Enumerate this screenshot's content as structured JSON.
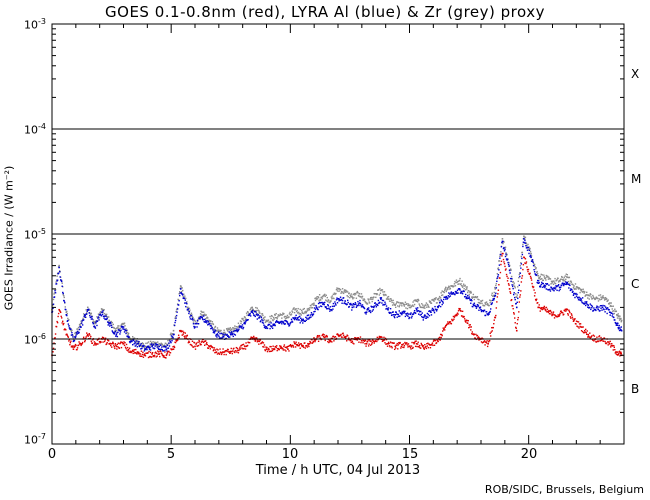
{
  "chart_data": {
    "type": "scatter",
    "title": "GOES 0.1-0.8nm (red), LYRA Al (blue) & Zr (grey) proxy",
    "xlabel": "Time / h UTC, 04 Jul 2013",
    "ylabel": "GOES Irradiance / (W m⁻²)",
    "xlim": [
      0,
      24
    ],
    "ylim": [
      1e-07,
      0.001
    ],
    "yscale": "log",
    "x_ticks": [
      "0",
      "5",
      "10",
      "15",
      "20"
    ],
    "y_ticks": [
      {
        "base": "10",
        "exp": "-3",
        "value": 0.001
      },
      {
        "base": "10",
        "exp": "-4",
        "value": 0.0001
      },
      {
        "base": "10",
        "exp": "-5",
        "value": 1e-05
      },
      {
        "base": "10",
        "exp": "-6",
        "value": 1e-06
      },
      {
        "base": "10",
        "exp": "-7",
        "value": 1e-07
      }
    ],
    "flare_class_lines": [
      0.0001,
      1e-05,
      1e-06
    ],
    "flare_classes": [
      {
        "label": "X",
        "center": 0.0003
      },
      {
        "label": "M",
        "center": 3e-05
      },
      {
        "label": "C",
        "center": 3e-06
      },
      {
        "label": "B",
        "center": 3e-07
      }
    ],
    "series": [
      {
        "name": "LYRA Zr proxy",
        "color": "#8c8c8c",
        "x": [
          0.0,
          0.3,
          0.6,
          0.9,
          1.2,
          1.5,
          1.8,
          2.1,
          2.4,
          2.7,
          3.0,
          3.3,
          3.6,
          3.9,
          4.2,
          4.5,
          4.8,
          5.1,
          5.4,
          5.7,
          6.0,
          6.3,
          6.6,
          6.9,
          7.2,
          7.5,
          7.8,
          8.1,
          8.4,
          8.7,
          9.0,
          9.3,
          9.6,
          9.9,
          10.2,
          10.5,
          10.8,
          11.1,
          11.4,
          11.7,
          12.0,
          12.3,
          12.6,
          12.9,
          13.2,
          13.5,
          13.8,
          14.1,
          14.4,
          14.7,
          15.0,
          15.3,
          15.6,
          15.9,
          16.2,
          16.5,
          16.8,
          17.1,
          17.4,
          17.7,
          18.0,
          18.3,
          18.6,
          18.9,
          19.2,
          19.5,
          19.8,
          20.1,
          20.4,
          20.7,
          21.0,
          21.3,
          21.6,
          21.9,
          22.2,
          22.5,
          22.8,
          23.1,
          23.4,
          23.7,
          23.9
        ],
        "y": [
          1.9e-06,
          5e-06,
          1.8e-06,
          1e-06,
          1.4e-06,
          2e-06,
          1.4e-06,
          1.9e-06,
          1.5e-06,
          1.2e-06,
          1.4e-06,
          1e-06,
          9.5e-07,
          8.5e-07,
          9e-07,
          9e-07,
          8.5e-07,
          1.2e-06,
          3.2e-06,
          2e-06,
          1.4e-06,
          1.8e-06,
          1.5e-06,
          1.2e-06,
          1.15e-06,
          1.2e-06,
          1.3e-06,
          1.6e-06,
          2e-06,
          1.8e-06,
          1.5e-06,
          1.6e-06,
          1.7e-06,
          1.6e-06,
          1.9e-06,
          1.8e-06,
          1.9e-06,
          2.4e-06,
          2.6e-06,
          2.3e-06,
          3e-06,
          2.8e-06,
          2.5e-06,
          2.7e-06,
          2.2e-06,
          2.5e-06,
          2.9e-06,
          2.4e-06,
          2.1e-06,
          2.2e-06,
          2e-06,
          2.3e-06,
          2e-06,
          2.2e-06,
          2.4e-06,
          3e-06,
          3.2e-06,
          3.6e-06,
          3e-06,
          2.5e-06,
          2.3e-06,
          2.1e-06,
          3e-06,
          9e-06,
          5e-06,
          2.5e-06,
          9.5e-06,
          6.5e-06,
          4e-06,
          3.8e-06,
          3.5e-06,
          3.6e-06,
          3.9e-06,
          3.2e-06,
          2.9e-06,
          2.6e-06,
          2.4e-06,
          2.5e-06,
          2.2e-06,
          1.7e-06,
          1.5e-06
        ]
      },
      {
        "name": "LYRA Al proxy",
        "color": "#0000cc",
        "x": [
          0.0,
          0.3,
          0.6,
          0.9,
          1.2,
          1.5,
          1.8,
          2.1,
          2.4,
          2.7,
          3.0,
          3.3,
          3.6,
          3.9,
          4.2,
          4.5,
          4.8,
          5.1,
          5.4,
          5.7,
          6.0,
          6.3,
          6.6,
          6.9,
          7.2,
          7.5,
          7.8,
          8.1,
          8.4,
          8.7,
          9.0,
          9.3,
          9.6,
          9.9,
          10.2,
          10.5,
          10.8,
          11.1,
          11.4,
          11.7,
          12.0,
          12.3,
          12.6,
          12.9,
          13.2,
          13.5,
          13.8,
          14.1,
          14.4,
          14.7,
          15.0,
          15.3,
          15.6,
          15.9,
          16.2,
          16.5,
          16.8,
          17.1,
          17.4,
          17.7,
          18.0,
          18.3,
          18.6,
          18.9,
          19.2,
          19.5,
          19.8,
          20.1,
          20.4,
          20.7,
          21.0,
          21.3,
          21.6,
          21.9,
          22.2,
          22.5,
          22.8,
          23.1,
          23.4,
          23.7,
          23.9
        ],
        "y": [
          1.8e-06,
          4.8e-06,
          1.7e-06,
          9.5e-07,
          1.3e-06,
          1.9e-06,
          1.3e-06,
          1.8e-06,
          1.4e-06,
          1.1e-06,
          1.3e-06,
          9.5e-07,
          9e-07,
          8e-07,
          8.5e-07,
          8.5e-07,
          8e-07,
          1.1e-06,
          3e-06,
          1.9e-06,
          1.3e-06,
          1.6e-06,
          1.4e-06,
          1.1e-06,
          1.05e-06,
          1.1e-06,
          1.2e-06,
          1.4e-06,
          1.8e-06,
          1.6e-06,
          1.3e-06,
          1.35e-06,
          1.45e-06,
          1.4e-06,
          1.6e-06,
          1.5e-06,
          1.6e-06,
          2e-06,
          2.2e-06,
          1.9e-06,
          2.4e-06,
          2.3e-06,
          2e-06,
          2.2e-06,
          1.8e-06,
          2e-06,
          2.4e-06,
          1.9e-06,
          1.7e-06,
          1.8e-06,
          1.6e-06,
          1.9e-06,
          1.6e-06,
          1.8e-06,
          2e-06,
          2.5e-06,
          2.7e-06,
          3e-06,
          2.5e-06,
          2.1e-06,
          1.9e-06,
          1.7e-06,
          2.6e-06,
          8.5e-06,
          4.5e-06,
          2e-06,
          9e-06,
          6e-06,
          3.4e-06,
          3.2e-06,
          3e-06,
          3.1e-06,
          3.4e-06,
          2.7e-06,
          2.4e-06,
          2.1e-06,
          1.9e-06,
          2e-06,
          1.8e-06,
          1.4e-06,
          1.2e-06
        ]
      },
      {
        "name": "GOES 0.1-0.8nm",
        "color": "#dd0000",
        "x": [
          0.0,
          0.3,
          0.6,
          0.9,
          1.2,
          1.5,
          1.8,
          2.1,
          2.4,
          2.7,
          3.0,
          3.3,
          3.6,
          3.9,
          4.2,
          4.5,
          4.8,
          5.1,
          5.4,
          5.7,
          6.0,
          6.3,
          6.6,
          6.9,
          7.2,
          7.5,
          7.8,
          8.1,
          8.4,
          8.7,
          9.0,
          9.3,
          9.6,
          9.9,
          10.2,
          10.5,
          10.8,
          11.1,
          11.4,
          11.7,
          12.0,
          12.3,
          12.6,
          12.9,
          13.2,
          13.5,
          13.8,
          14.1,
          14.4,
          14.7,
          15.0,
          15.3,
          15.6,
          15.9,
          16.2,
          16.5,
          16.8,
          17.1,
          17.4,
          17.7,
          18.0,
          18.3,
          18.6,
          18.9,
          19.2,
          19.5,
          19.8,
          20.1,
          20.4,
          20.7,
          21.0,
          21.3,
          21.6,
          21.9,
          22.2,
          22.5,
          22.8,
          23.1,
          23.4,
          23.7,
          23.9
        ],
        "y": [
          7e-07,
          1.9e-06,
          1.1e-06,
          8e-07,
          9e-07,
          1.1e-06,
          9e-07,
          1e-06,
          9e-07,
          8.5e-07,
          9e-07,
          7.5e-07,
          7.5e-07,
          7e-07,
          7.2e-07,
          7.2e-07,
          7e-07,
          8e-07,
          1.2e-06,
          1e-06,
          8.5e-07,
          9.5e-07,
          8.5e-07,
          7.5e-07,
          7.5e-07,
          7.6e-07,
          7.8e-07,
          8.5e-07,
          1e-06,
          9.5e-07,
          8e-07,
          8e-07,
          8.5e-07,
          8e-07,
          9e-07,
          8.5e-07,
          9e-07,
          1e-06,
          1.05e-06,
          9.5e-07,
          1.1e-06,
          1.05e-06,
          9.5e-07,
          1e-06,
          9e-07,
          9.5e-07,
          1.05e-06,
          9e-07,
          8.5e-07,
          8.8e-07,
          8.5e-07,
          9e-07,
          8.2e-07,
          8.8e-07,
          9.5e-07,
          1.3e-06,
          1.5e-06,
          1.9e-06,
          1.5e-06,
          1.1e-06,
          1e-06,
          9e-07,
          1.6e-06,
          6.5e-06,
          3e-06,
          1.2e-06,
          6e-06,
          3.8e-06,
          2e-06,
          1.9e-06,
          1.7e-06,
          1.7e-06,
          1.9e-06,
          1.5e-06,
          1.3e-06,
          1.1e-06,
          1e-06,
          1e-06,
          9e-07,
          7.5e-07,
          7e-07
        ]
      }
    ]
  },
  "credit": "ROB/SIDC, Brussels, Belgium"
}
